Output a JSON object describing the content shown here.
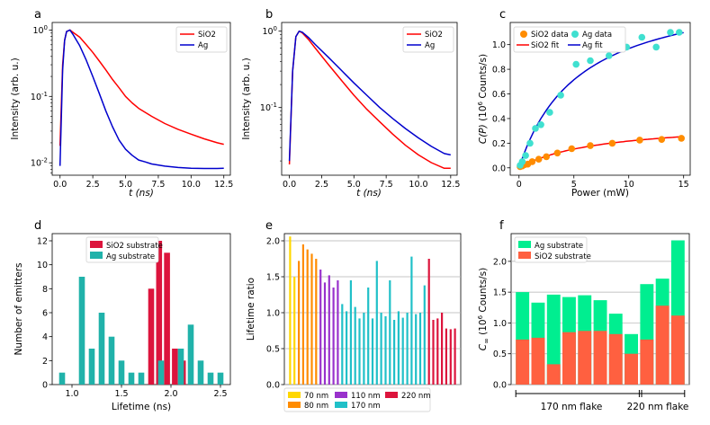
{
  "chart_data": [
    {
      "panel": "a",
      "type": "line",
      "yscale": "log",
      "xlabel": "t (ns)",
      "ylabel": "Intensity (arb. u.)",
      "xlim": [
        -0.6,
        13.0
      ],
      "ylim": [
        0.0065,
        1.3
      ],
      "xticks": [
        "0.0",
        "2.5",
        "5.0",
        "7.5",
        "10.0",
        "12.5"
      ],
      "yticks": [
        "10^-2",
        "10^-1",
        "10^0"
      ],
      "legend": {
        "position": "top-right",
        "entries": [
          "SiO2",
          "Ag"
        ]
      },
      "series": [
        {
          "name": "SiO2",
          "color": "#ff0000",
          "x": [
            0.0,
            0.2,
            0.35,
            0.5,
            0.75,
            1.0,
            1.5,
            2.0,
            2.5,
            3.0,
            3.5,
            4.0,
            4.5,
            5.0,
            5.5,
            6.0,
            7.0,
            8.0,
            9.0,
            10.0,
            11.0,
            12.0,
            12.5
          ],
          "y": [
            0.018,
            0.3,
            0.7,
            0.95,
            1.0,
            0.92,
            0.78,
            0.6,
            0.46,
            0.34,
            0.25,
            0.18,
            0.135,
            0.1,
            0.08,
            0.066,
            0.05,
            0.039,
            0.032,
            0.027,
            0.023,
            0.02,
            0.019
          ]
        },
        {
          "name": "Ag",
          "color": "#0000cd",
          "x": [
            0.0,
            0.2,
            0.35,
            0.5,
            0.75,
            1.0,
            1.5,
            2.0,
            2.5,
            3.0,
            3.5,
            4.0,
            4.5,
            5.0,
            5.5,
            6.0,
            6.5,
            7.0,
            8.0,
            9.0,
            10.0,
            11.0,
            12.0,
            12.5
          ],
          "y": [
            0.009,
            0.25,
            0.7,
            0.95,
            1.0,
            0.85,
            0.58,
            0.35,
            0.2,
            0.11,
            0.06,
            0.035,
            0.022,
            0.016,
            0.013,
            0.011,
            0.0103,
            0.0096,
            0.0089,
            0.0085,
            0.0083,
            0.0082,
            0.0082,
            0.0083
          ]
        }
      ]
    },
    {
      "panel": "b",
      "type": "line",
      "yscale": "log",
      "xlabel": "t (ns)",
      "ylabel": "Intensity (arb. u.)",
      "xlim": [
        -0.6,
        13.0
      ],
      "ylim": [
        0.013,
        1.3
      ],
      "xticks": [
        "0.0",
        "2.5",
        "5.0",
        "7.5",
        "10.0",
        "12.5"
      ],
      "yticks": [
        "10^-1",
        "10^0"
      ],
      "legend": {
        "position": "top-right",
        "entries": [
          "SiO2",
          "Ag"
        ]
      },
      "series": [
        {
          "name": "SiO2",
          "color": "#ff0000",
          "x": [
            0.0,
            0.25,
            0.5,
            0.75,
            1.0,
            1.5,
            2.0,
            3.0,
            4.0,
            5.0,
            6.0,
            7.0,
            8.0,
            9.0,
            10.0,
            11.0,
            12.0,
            12.5
          ],
          "y": [
            0.018,
            0.3,
            0.85,
            1.0,
            0.95,
            0.77,
            0.6,
            0.37,
            0.23,
            0.145,
            0.095,
            0.065,
            0.045,
            0.032,
            0.024,
            0.019,
            0.016,
            0.016
          ]
        },
        {
          "name": "Ag",
          "color": "#0000cd",
          "x": [
            0.0,
            0.25,
            0.5,
            0.75,
            1.0,
            1.5,
            2.0,
            3.0,
            4.0,
            5.0,
            6.0,
            7.0,
            8.0,
            9.0,
            10.0,
            11.0,
            12.0,
            12.5
          ],
          "y": [
            0.02,
            0.3,
            0.85,
            1.0,
            0.97,
            0.82,
            0.67,
            0.46,
            0.31,
            0.21,
            0.145,
            0.1,
            0.072,
            0.053,
            0.04,
            0.031,
            0.025,
            0.024
          ]
        }
      ]
    },
    {
      "panel": "c",
      "type": "scatter",
      "xlabel": "Power (mW)",
      "ylabel": "C(P) (10^6 Counts/s)",
      "xlim": [
        -0.8,
        15.6
      ],
      "ylim": [
        -0.06,
        1.18
      ],
      "xticks": [
        0,
        5,
        10,
        15
      ],
      "yticks": [
        "0.0",
        "0.2",
        "0.4",
        "0.6",
        "0.8",
        "1.0"
      ],
      "legend": {
        "position": "top-left",
        "entries": [
          "SiO2 data",
          "Ag data",
          "SiO2 fit",
          "Ag fit"
        ]
      },
      "series": [
        {
          "name": "SiO2 data",
          "kind": "scatter",
          "color": "#ff8c00",
          "x": [
            0.1,
            0.3,
            0.5,
            0.8,
            1.2,
            1.8,
            2.5,
            3.5,
            4.8,
            6.5,
            8.5,
            11.0,
            13.0,
            14.8
          ],
          "y": [
            0.01,
            0.015,
            0.025,
            0.03,
            0.05,
            0.07,
            0.09,
            0.12,
            0.155,
            0.18,
            0.2,
            0.225,
            0.23,
            0.24
          ]
        },
        {
          "name": "Ag data",
          "kind": "scatter",
          "color": "#40e0d0",
          "x": [
            0.1,
            0.3,
            0.6,
            1.0,
            1.5,
            2.0,
            2.8,
            3.8,
            5.2,
            6.5,
            8.2,
            9.8,
            11.2,
            12.5,
            13.8,
            14.6
          ],
          "y": [
            0.02,
            0.05,
            0.1,
            0.2,
            0.32,
            0.35,
            0.45,
            0.59,
            0.84,
            0.87,
            0.91,
            0.98,
            1.06,
            0.98,
            1.1,
            1.1
          ]
        },
        {
          "name": "SiO2 fit",
          "kind": "line",
          "color": "#ff0000",
          "Cinf": 0.38,
          "Psat": 7.5
        },
        {
          "name": "Ag fit",
          "kind": "line",
          "color": "#0000cd",
          "Cinf": 1.5,
          "Psat": 5.5
        }
      ]
    },
    {
      "panel": "d",
      "type": "bar",
      "xlabel": "Lifetime (ns)",
      "ylabel": "Number of emitters",
      "xlim": [
        0.8,
        2.6
      ],
      "ylim": [
        0,
        12.6
      ],
      "xticks": [
        "1.0",
        "1.5",
        "2.0",
        "2.5"
      ],
      "yticks": [
        0,
        2,
        4,
        6,
        8,
        10,
        12
      ],
      "legend": {
        "position": "top-center",
        "entries": [
          "SiO2 substrate",
          "Ag substrate"
        ]
      },
      "series": [
        {
          "name": "SiO2 substrate",
          "color": "#dc143c",
          "x": [
            1.8,
            1.88,
            1.96,
            2.04,
            2.12
          ],
          "values": [
            8,
            12,
            11,
            3,
            2
          ]
        },
        {
          "name": "Ag substrate",
          "color": "#20b2aa",
          "x": [
            0.9,
            1.1,
            1.2,
            1.3,
            1.4,
            1.5,
            1.6,
            1.7,
            1.9,
            2.1,
            2.2,
            2.3,
            2.4,
            2.5
          ],
          "values": [
            1,
            9,
            3,
            6,
            4,
            2,
            1,
            1,
            2,
            3,
            5,
            2,
            1,
            1
          ]
        }
      ]
    },
    {
      "panel": "e",
      "type": "bar",
      "ylabel": "Lifetime ratio",
      "ylim": [
        0,
        2.1
      ],
      "yticks": [
        "0.0",
        "0.5",
        "1.0",
        "1.5",
        "2.0"
      ],
      "legend": {
        "position": "bottom",
        "entries": [
          "70 nm",
          "80 nm",
          "110 nm",
          "170 nm",
          "220 nm"
        ]
      },
      "groups": [
        {
          "name": "70 nm",
          "color": "#ffd700",
          "values": [
            2.06,
            1.5
          ]
        },
        {
          "name": "80 nm",
          "color": "#ff8c00",
          "values": [
            1.72,
            1.95,
            1.88,
            1.82,
            1.75
          ]
        },
        {
          "name": "110 nm",
          "color": "#9932cc",
          "values": [
            1.6,
            1.42,
            1.52,
            1.35,
            1.45
          ]
        },
        {
          "name": "170 nm",
          "color": "#20c0c8",
          "values": [
            1.12,
            1.02,
            1.45,
            1.08,
            0.92,
            1.0,
            1.35,
            0.92,
            1.72,
            1.0,
            0.95,
            1.45,
            0.9,
            1.02,
            0.93,
            1.0,
            1.78,
            0.98,
            1.0,
            1.38
          ]
        },
        {
          "name": "220 nm",
          "color": "#dc143c",
          "values": [
            1.75,
            0.9,
            0.92,
            1.0,
            0.78,
            0.77,
            0.78
          ]
        }
      ]
    },
    {
      "panel": "f",
      "type": "bar",
      "ylabel": "C∞ (10^6 Counts/s)",
      "ylim": [
        0,
        2.45
      ],
      "yticks": [
        "0.0",
        "0.5",
        "1.0",
        "1.5",
        "2.0"
      ],
      "legend": {
        "position": "top-left",
        "entries": [
          "Ag substrate",
          "SiO2 substrate"
        ]
      },
      "groups_label": [
        "170 nm flake",
        "220 nm flake"
      ],
      "groups_split": 8,
      "series": [
        {
          "name": "Ag substrate",
          "color": "#00ee90",
          "values": [
            1.5,
            1.33,
            1.46,
            1.42,
            1.45,
            1.37,
            1.15,
            0.82,
            1.63,
            1.72,
            2.34
          ]
        },
        {
          "name": "SiO2 substrate",
          "color": "#ff6040",
          "values": [
            0.73,
            0.76,
            0.33,
            0.85,
            0.87,
            0.87,
            0.82,
            0.5,
            0.73,
            1.28,
            1.12
          ]
        }
      ]
    }
  ],
  "labels": {
    "panels": [
      "a",
      "b",
      "c",
      "d",
      "e",
      "f"
    ],
    "a": {
      "legend": [
        "SiO2",
        "Ag"
      ],
      "xlabel": "t (ns)",
      "ylabel": "Intensity (arb. u.)"
    },
    "b": {
      "legend": [
        "SiO2",
        "Ag"
      ],
      "xlabel": "t (ns)",
      "ylabel": "Intensity (arb. u.)"
    },
    "c": {
      "legend": [
        "SiO2 data",
        "Ag data",
        "SiO2 fit",
        "Ag fit"
      ],
      "xlabel": "Power (mW)",
      "ylabel_main": "C(P)",
      "ylabel_unit": "(10",
      "ylabel_exp": "6",
      "ylabel_tail": " Counts/s)"
    },
    "d": {
      "legend": [
        "SiO2 substrate",
        "Ag substrate"
      ],
      "xlabel": "Lifetime (ns)",
      "ylabel": "Number of emitters"
    },
    "e": {
      "legend": [
        "70 nm",
        "80 nm",
        "110 nm",
        "170 nm",
        "220 nm"
      ],
      "ylabel": "Lifetime ratio"
    },
    "f": {
      "legend": [
        "Ag substrate",
        "SiO2 substrate"
      ],
      "ylabel_main": "C",
      "ylabel_sub": "∞",
      "ylabel_unit": "(10",
      "ylabel_exp": "6",
      "ylabel_tail": " Counts/s)",
      "groups": [
        "170 nm flake",
        "220 nm flake"
      ]
    }
  }
}
